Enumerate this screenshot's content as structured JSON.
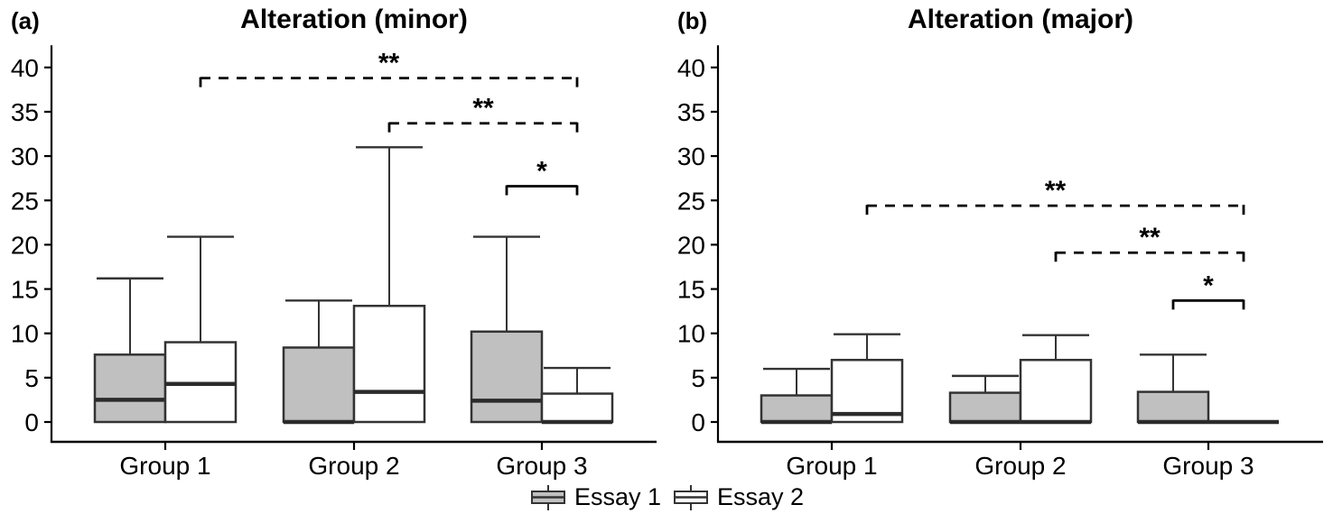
{
  "colors": {
    "essay1_fill": "#c0c0c0",
    "essay2_fill": "#ffffff",
    "box_stroke": "#333333",
    "median_stroke": "#2b2b2b",
    "axis_color": "#000000",
    "text_color": "#000000",
    "background": "#ffffff"
  },
  "legend": {
    "items": [
      {
        "label": "Essay 1",
        "fill": "#c0c0c0"
      },
      {
        "label": "Essay 2",
        "fill": "#ffffff"
      }
    ]
  },
  "chart_data": [
    {
      "type": "boxplot",
      "panel_label": "(a)",
      "title": "Alteration (minor)",
      "groups": [
        "Group 1",
        "Group 2",
        "Group 3"
      ],
      "series": [
        "Essay 1",
        "Essay 2"
      ],
      "xlabel": "",
      "ylabel": "",
      "ylim": [
        0,
        42
      ],
      "y_ticks": [
        0,
        5,
        10,
        15,
        20,
        25,
        30,
        35,
        40
      ],
      "grid": false,
      "boxes": [
        {
          "group": "Group 1",
          "series": "Essay 1",
          "min": 0,
          "q1": 0,
          "median": 2.5,
          "q3": 7.6,
          "max": 16.2
        },
        {
          "group": "Group 1",
          "series": "Essay 2",
          "min": 0,
          "q1": 0,
          "median": 4.3,
          "q3": 9.0,
          "max": 20.9
        },
        {
          "group": "Group 2",
          "series": "Essay 1",
          "min": 0,
          "q1": 0,
          "median": 0,
          "q3": 8.4,
          "max": 13.7
        },
        {
          "group": "Group 2",
          "series": "Essay 2",
          "min": 0,
          "q1": 0,
          "median": 3.4,
          "q3": 13.1,
          "max": 31.0
        },
        {
          "group": "Group 3",
          "series": "Essay 1",
          "min": 0,
          "q1": 0,
          "median": 2.4,
          "q3": 10.2,
          "max": 20.9
        },
        {
          "group": "Group 3",
          "series": "Essay 2",
          "min": 0,
          "q1": 0,
          "median": 0,
          "q3": 3.2,
          "max": 6.1
        }
      ],
      "significance": [
        {
          "label": "**",
          "style": "dashed",
          "from": {
            "group": "Group 1",
            "series": "Essay 2"
          },
          "to": {
            "group": "Group 3",
            "series": "Essay 2"
          },
          "y": 38.8
        },
        {
          "label": "**",
          "style": "dashed",
          "from": {
            "group": "Group 2",
            "series": "Essay 2"
          },
          "to": {
            "group": "Group 3",
            "series": "Essay 2"
          },
          "y": 33.7
        },
        {
          "label": "*",
          "style": "solid",
          "from": {
            "group": "Group 3",
            "series": "Essay 1"
          },
          "to": {
            "group": "Group 3",
            "series": "Essay 2"
          },
          "y": 26.6
        }
      ]
    },
    {
      "type": "boxplot",
      "panel_label": "(b)",
      "title": "Alteration (major)",
      "groups": [
        "Group 1",
        "Group 2",
        "Group 3"
      ],
      "series": [
        "Essay 1",
        "Essay 2"
      ],
      "xlabel": "",
      "ylabel": "",
      "ylim": [
        0,
        42
      ],
      "y_ticks": [
        0,
        5,
        10,
        15,
        20,
        25,
        30,
        35,
        40
      ],
      "grid": false,
      "boxes": [
        {
          "group": "Group 1",
          "series": "Essay 1",
          "min": 0,
          "q1": 0,
          "median": 0,
          "q3": 3.0,
          "max": 6.0
        },
        {
          "group": "Group 1",
          "series": "Essay 2",
          "min": 0,
          "q1": 0,
          "median": 0.9,
          "q3": 7.0,
          "max": 9.9
        },
        {
          "group": "Group 2",
          "series": "Essay 1",
          "min": 0,
          "q1": 0,
          "median": 0,
          "q3": 3.3,
          "max": 5.2
        },
        {
          "group": "Group 2",
          "series": "Essay 2",
          "min": 0,
          "q1": 0,
          "median": 0,
          "q3": 7.0,
          "max": 9.8
        },
        {
          "group": "Group 3",
          "series": "Essay 1",
          "min": 0,
          "q1": 0,
          "median": 0,
          "q3": 3.4,
          "max": 7.6
        },
        {
          "group": "Group 3",
          "series": "Essay 2",
          "min": 0,
          "q1": 0,
          "median": 0,
          "q3": 0,
          "max": 0
        }
      ],
      "significance": [
        {
          "label": "**",
          "style": "dashed",
          "from": {
            "group": "Group 1",
            "series": "Essay 2"
          },
          "to": {
            "group": "Group 3",
            "series": "Essay 2"
          },
          "y": 24.4
        },
        {
          "label": "**",
          "style": "dashed",
          "from": {
            "group": "Group 2",
            "series": "Essay 2"
          },
          "to": {
            "group": "Group 3",
            "series": "Essay 2"
          },
          "y": 19.1
        },
        {
          "label": "*",
          "style": "solid",
          "from": {
            "group": "Group 3",
            "series": "Essay 1"
          },
          "to": {
            "group": "Group 3",
            "series": "Essay 2"
          },
          "y": 13.7
        }
      ]
    }
  ]
}
